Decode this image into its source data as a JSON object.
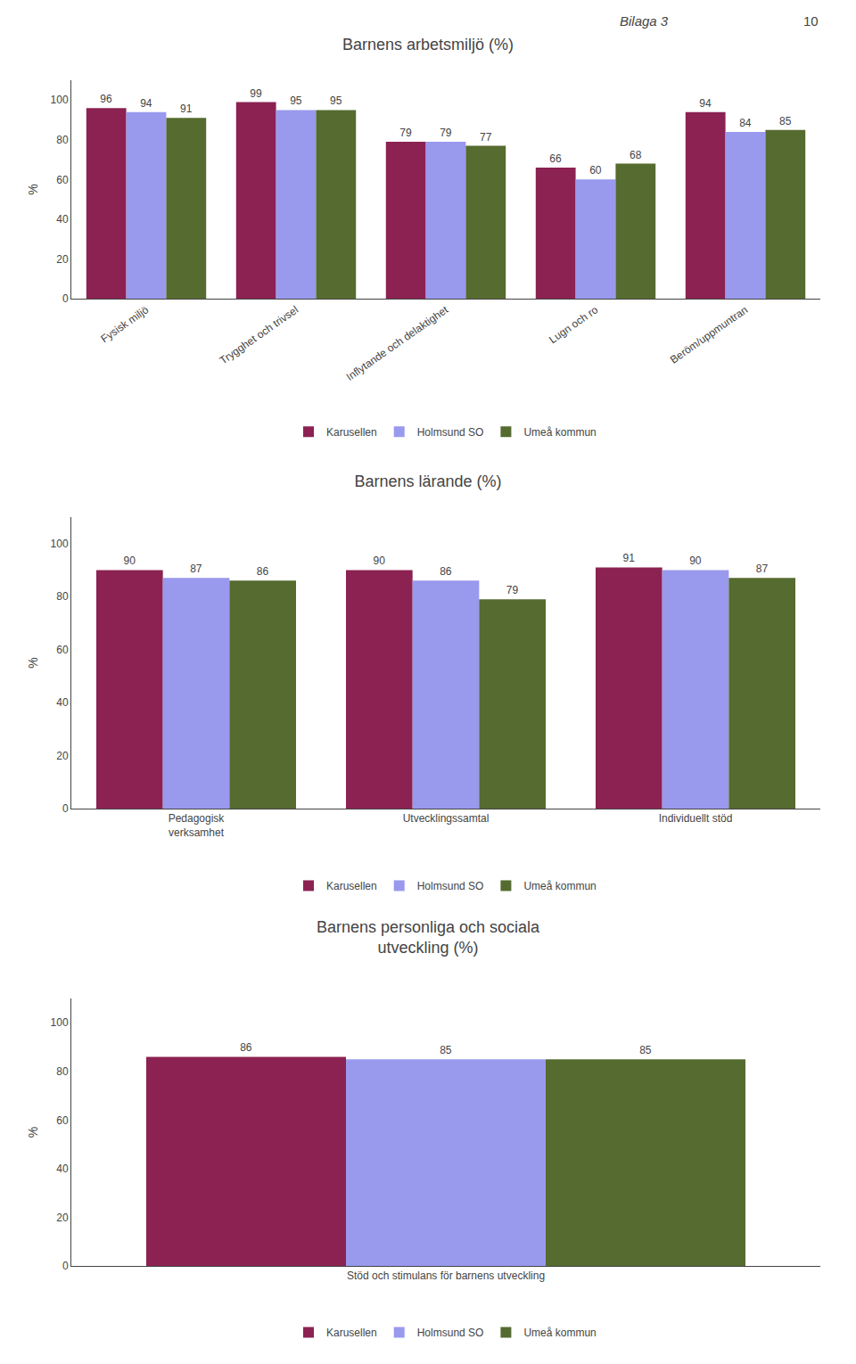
{
  "chart_data": [
    {
      "type": "bar",
      "title": "Barnens arbetsmiljö (%)",
      "annotations": [
        "Bilaga 3",
        "10"
      ],
      "categories": [
        "Fysisk miljö",
        "Trygghet och trivsel",
        "Inflytande och delaktighet",
        "Lugn och ro",
        "Beröm/uppmuntran"
      ],
      "series": [
        {
          "name": "Karusellen",
          "color": "#8B2252",
          "values": [
            96,
            99,
            79,
            66,
            94
          ]
        },
        {
          "name": "Holmsund SO",
          "color": "#9999EE",
          "values": [
            94,
            95,
            79,
            60,
            84
          ]
        },
        {
          "name": "Umeå kommun",
          "color": "#556B2F",
          "values": [
            91,
            95,
            77,
            68,
            85
          ]
        }
      ],
      "ylabel": "%",
      "ylim": [
        0,
        110
      ],
      "yticks": [
        0,
        20,
        40,
        60,
        80,
        100
      ],
      "data_labels": true,
      "legend": "bottom",
      "grid": false
    },
    {
      "type": "bar",
      "title": "Barnens lärande (%)",
      "categories": [
        "Pedagogisk\nverksamhet",
        "Utvecklingssamtal",
        "Individuellt stöd"
      ],
      "series": [
        {
          "name": "Karusellen",
          "color": "#8B2252",
          "values": [
            90,
            90,
            91
          ]
        },
        {
          "name": "Holmsund SO",
          "color": "#9999EE",
          "values": [
            87,
            86,
            90
          ]
        },
        {
          "name": "Umeå kommun",
          "color": "#556B2F",
          "values": [
            86,
            79,
            87
          ]
        }
      ],
      "ylabel": "%",
      "ylim": [
        0,
        110
      ],
      "yticks": [
        0,
        20,
        40,
        60,
        80,
        100
      ],
      "data_labels": true,
      "legend": "bottom",
      "grid": false
    },
    {
      "type": "bar",
      "title": "Barnens personliga och sociala\nutveckling (%)",
      "categories": [
        "Stöd och stimulans för barnens utveckling"
      ],
      "series": [
        {
          "name": "Karusellen",
          "color": "#8B2252",
          "values": [
            86
          ]
        },
        {
          "name": "Holmsund SO",
          "color": "#9999EE",
          "values": [
            85
          ]
        },
        {
          "name": "Umeå kommun",
          "color": "#556B2F",
          "values": [
            85
          ]
        }
      ],
      "ylabel": "%",
      "ylim": [
        0,
        110
      ],
      "yticks": [
        0,
        20,
        40,
        60,
        80,
        100
      ],
      "data_labels": true,
      "legend": "bottom",
      "grid": false
    }
  ]
}
